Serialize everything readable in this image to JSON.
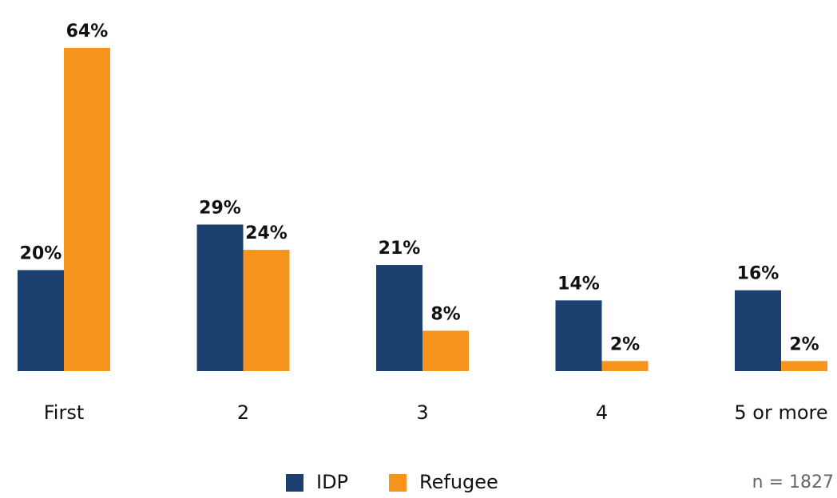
{
  "chart_data": {
    "type": "bar",
    "categories": [
      "First",
      "2",
      "3",
      "4",
      "5 or more"
    ],
    "series": [
      {
        "name": "IDP",
        "color": "#1b3f6e",
        "values": [
          20,
          29,
          21,
          14,
          16
        ],
        "value_labels": [
          "20%",
          "29%",
          "21%",
          "14%",
          "16%"
        ]
      },
      {
        "name": "Refugee",
        "color": "#f7941d",
        "values": [
          64,
          24,
          8,
          2,
          2
        ],
        "value_labels": [
          "64%",
          "24%",
          "8%",
          "2%",
          "2%"
        ]
      }
    ],
    "legend": "bottom",
    "annotation": "n = 1827"
  }
}
